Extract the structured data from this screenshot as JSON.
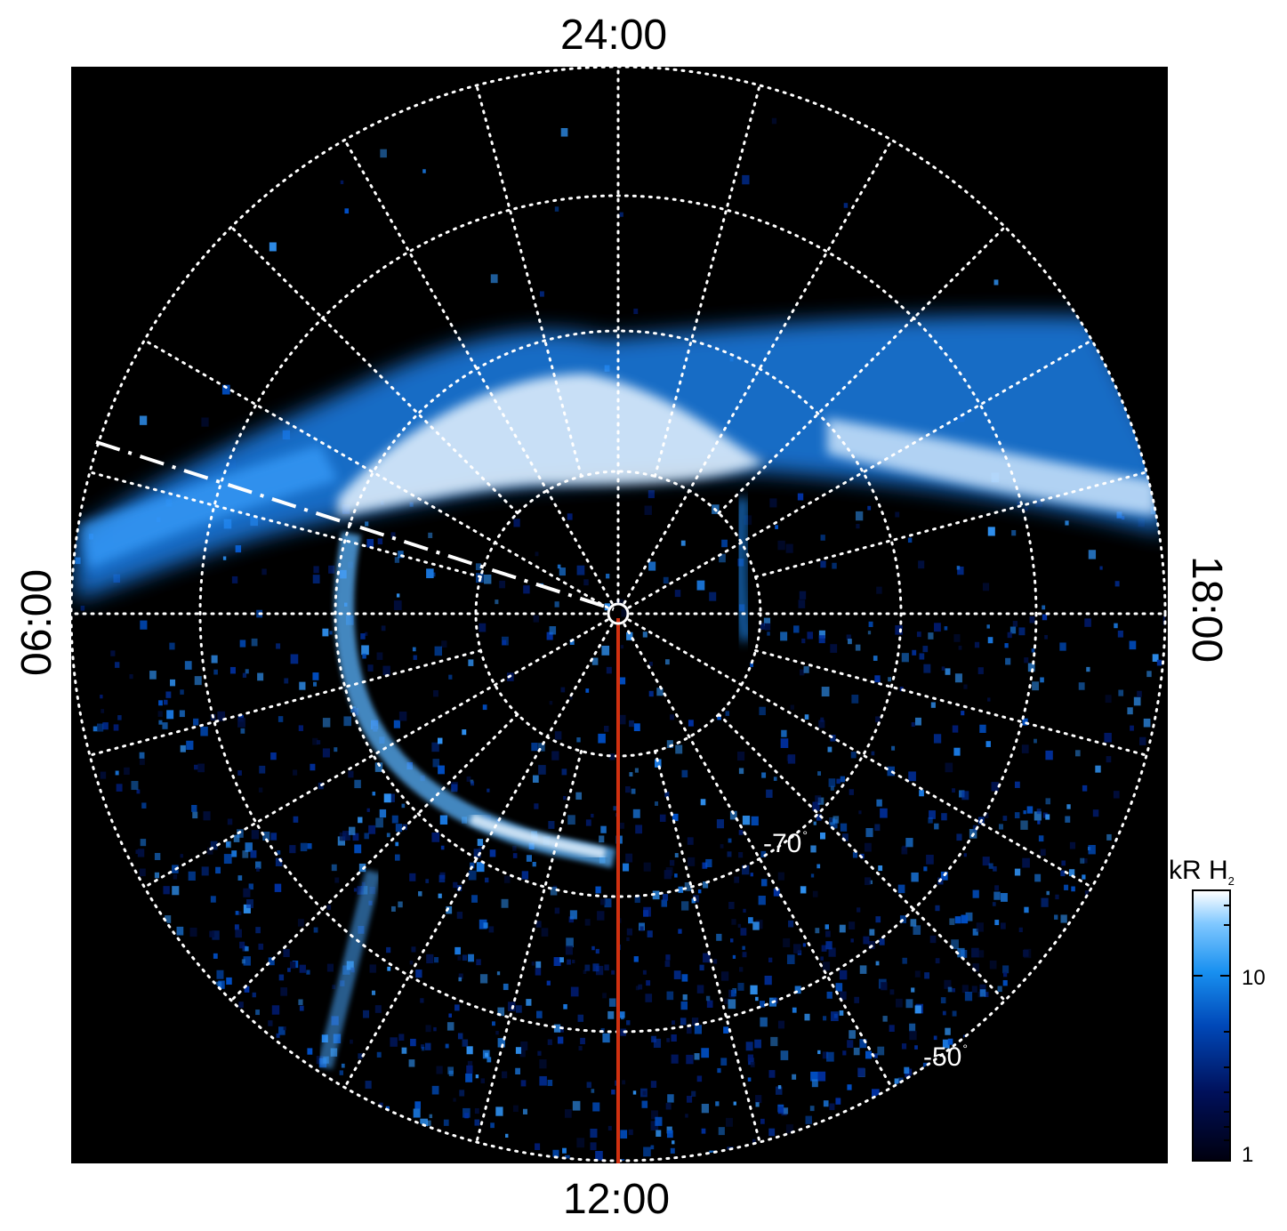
{
  "local_time_labels": {
    "top": "24:00",
    "bottom": "12:00",
    "left": "06:00",
    "right": "18:00"
  },
  "latitude_labels": {
    "inner": "-70",
    "outer": "-50",
    "degree_symbol": "°"
  },
  "colorbar": {
    "title": "kR H",
    "title_subscript": "2",
    "ticks": [
      "10",
      "1"
    ],
    "scale": "log",
    "range": [
      1,
      30
    ],
    "colors": [
      "#000010",
      "#00105a",
      "#0048b8",
      "#1890f0",
      "#80c8ff",
      "#ffffff"
    ]
  },
  "colors": {
    "background": "#000000",
    "grid": "#ffffff",
    "meridian_line": "#d03010",
    "aurora_main": "#1e90ff",
    "aurora_bright": "#e8f4ff"
  }
}
